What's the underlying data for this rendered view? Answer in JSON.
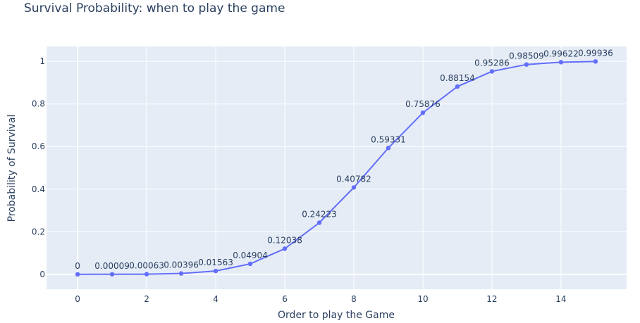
{
  "chart_data": {
    "type": "line",
    "title": "Survival Probability: when to play the game",
    "xlabel": "Order to play the Game",
    "ylabel": "Probability of Survival",
    "xlim": [
      -0.9,
      15.9
    ],
    "ylim": [
      -0.07,
      1.07
    ],
    "xticks": [
      0,
      2,
      4,
      6,
      8,
      10,
      12,
      14
    ],
    "yticks": [
      0,
      0.2,
      0.4,
      0.6,
      0.8,
      1
    ],
    "ytick_labels": [
      "0",
      "0.2",
      "0.4",
      "0.6",
      "0.8",
      "1"
    ],
    "grid": true,
    "x": [
      0,
      1,
      2,
      3,
      4,
      5,
      6,
      7,
      8,
      9,
      10,
      11,
      12,
      13,
      14,
      15
    ],
    "values": [
      0,
      9e-05,
      0.00063,
      0.00396,
      0.01563,
      0.04904,
      0.12038,
      0.24223,
      0.40782,
      0.59331,
      0.75876,
      0.88154,
      0.95286,
      0.98509,
      0.99622,
      0.99936
    ],
    "data_labels": [
      "0",
      "0.00009",
      "0.00063",
      "0.00396",
      "0.01563",
      "0.04904",
      "0.12038",
      "0.24223",
      "0.40782",
      "0.59331",
      "0.75876",
      "0.88154",
      "0.95286",
      "0.98509",
      "0.99622",
      "0.99936"
    ],
    "colors": {
      "line": "#636efa",
      "plot_bg": "#e5ecf6",
      "grid": "#ffffff",
      "text": "#2a3f5f"
    }
  }
}
